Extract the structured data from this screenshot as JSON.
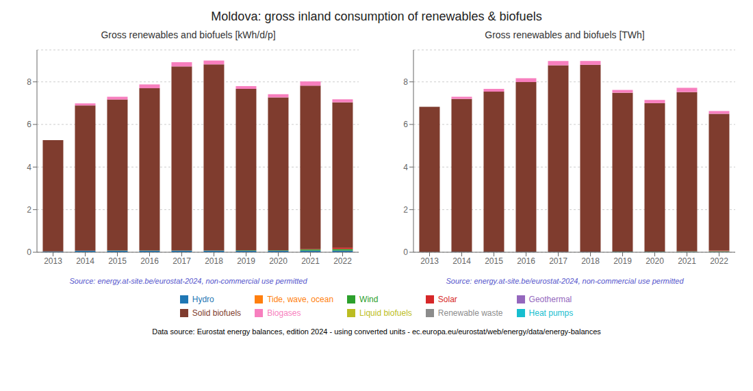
{
  "title": "Moldova: gross inland consumption of renewables & biofuels",
  "annotation": "Data source: Eurostat energy balances, edition 2024 - using converted units - ec.europa.eu/eurostat/web/energy/data/energy-balances",
  "legend": "bottom",
  "chart_data": [
    {
      "type": "bar",
      "title": "Gross renewables and biofuels [kWh/d/p]",
      "annotation": "Source: energy.at-site.be/eurostat-2024, non-commercial use permitted",
      "stacked": true,
      "grid": true,
      "categories": [
        "2013",
        "2014",
        "2015",
        "2016",
        "2017",
        "2018",
        "2019",
        "2020",
        "2021",
        "2022"
      ],
      "ylim": [
        0,
        9.5
      ],
      "yticks": [
        0,
        2,
        4,
        6,
        8
      ],
      "series": [
        {
          "name": "Hydro",
          "color": "#1f77b4",
          "values": [
            0.04,
            0.07,
            0.07,
            0.07,
            0.07,
            0.07,
            0.07,
            0.07,
            0.08,
            0.08
          ]
        },
        {
          "name": "Tide, wave, ocean",
          "color": "#ff7f0e",
          "values": [
            0.0,
            0.0,
            0.0,
            0.0,
            0.0,
            0.0,
            0.0,
            0.0,
            0.0,
            0.0
          ]
        },
        {
          "name": "Wind",
          "color": "#2ca02c",
          "values": [
            0.0,
            0.0,
            0.01,
            0.01,
            0.01,
            0.01,
            0.02,
            0.02,
            0.05,
            0.07
          ]
        },
        {
          "name": "Solar",
          "color": "#d62728",
          "values": [
            0.0,
            0.0,
            0.0,
            0.0,
            0.0,
            0.0,
            0.0,
            0.0,
            0.02,
            0.07
          ]
        },
        {
          "name": "Geothermal",
          "color": "#9467bd",
          "values": [
            0.0,
            0.0,
            0.0,
            0.0,
            0.0,
            0.0,
            0.0,
            0.0,
            0.0,
            0.0
          ]
        },
        {
          "name": "Solid biofuels",
          "color": "#7f3c2e",
          "values": [
            5.22,
            6.82,
            7.09,
            7.62,
            8.64,
            8.74,
            7.58,
            7.18,
            7.67,
            6.82
          ]
        },
        {
          "name": "Biogases",
          "color": "#f77fbe",
          "values": [
            0.0,
            0.1,
            0.13,
            0.18,
            0.2,
            0.18,
            0.13,
            0.15,
            0.2,
            0.14
          ]
        },
        {
          "name": "Liquid biofuels",
          "color": "#bcbd22",
          "values": [
            0.0,
            0.0,
            0.0,
            0.0,
            0.0,
            0.0,
            0.0,
            0.0,
            0.0,
            0.0
          ]
        },
        {
          "name": "Renewable waste",
          "color": "#8c8c8c",
          "values": [
            0.0,
            0.0,
            0.0,
            0.0,
            0.0,
            0.0,
            0.0,
            0.0,
            0.0,
            0.0
          ]
        },
        {
          "name": "Heat pumps",
          "color": "#17becf",
          "values": [
            0.0,
            0.0,
            0.0,
            0.0,
            0.0,
            0.0,
            0.0,
            0.0,
            0.0,
            0.0
          ]
        }
      ]
    },
    {
      "type": "bar",
      "title": "Gross renewables and biofuels [TWh]",
      "annotation": "Source: energy.at-site.be/eurostat-2024, non-commercial use permitted",
      "stacked": true,
      "grid": true,
      "categories": [
        "2013",
        "2014",
        "2015",
        "2016",
        "2017",
        "2018",
        "2019",
        "2020",
        "2021",
        "2022"
      ],
      "ylim": [
        0,
        9.5
      ],
      "yticks": [
        0,
        2,
        4,
        6,
        8
      ],
      "series": [
        {
          "name": "Hydro",
          "color": "#1f77b4",
          "values": [
            0.01,
            0.02,
            0.02,
            0.02,
            0.02,
            0.02,
            0.02,
            0.02,
            0.02,
            0.02
          ]
        },
        {
          "name": "Tide, wave, ocean",
          "color": "#ff7f0e",
          "values": [
            0.0,
            0.0,
            0.0,
            0.0,
            0.0,
            0.0,
            0.0,
            0.0,
            0.0,
            0.0
          ]
        },
        {
          "name": "Wind",
          "color": "#2ca02c",
          "values": [
            0.0,
            0.0,
            0.0,
            0.0,
            0.0,
            0.0,
            0.01,
            0.01,
            0.02,
            0.03
          ]
        },
        {
          "name": "Solar",
          "color": "#d62728",
          "values": [
            0.0,
            0.0,
            0.0,
            0.0,
            0.0,
            0.0,
            0.0,
            0.0,
            0.01,
            0.03
          ]
        },
        {
          "name": "Geothermal",
          "color": "#9467bd",
          "values": [
            0.0,
            0.0,
            0.0,
            0.0,
            0.0,
            0.0,
            0.0,
            0.0,
            0.0,
            0.0
          ]
        },
        {
          "name": "Solid biofuels",
          "color": "#7f3c2e",
          "values": [
            6.82,
            7.18,
            7.52,
            7.97,
            8.76,
            8.78,
            7.46,
            6.97,
            7.47,
            6.42
          ]
        },
        {
          "name": "Biogases",
          "color": "#f77fbe",
          "values": [
            0.0,
            0.1,
            0.13,
            0.18,
            0.2,
            0.18,
            0.13,
            0.15,
            0.2,
            0.13
          ]
        },
        {
          "name": "Liquid biofuels",
          "color": "#bcbd22",
          "values": [
            0.0,
            0.0,
            0.0,
            0.0,
            0.0,
            0.0,
            0.0,
            0.0,
            0.0,
            0.0
          ]
        },
        {
          "name": "Renewable waste",
          "color": "#8c8c8c",
          "values": [
            0.0,
            0.0,
            0.0,
            0.0,
            0.0,
            0.0,
            0.0,
            0.0,
            0.0,
            0.0
          ]
        },
        {
          "name": "Heat pumps",
          "color": "#17becf",
          "values": [
            0.0,
            0.0,
            0.0,
            0.0,
            0.0,
            0.0,
            0.0,
            0.0,
            0.0,
            0.0
          ]
        }
      ]
    }
  ]
}
